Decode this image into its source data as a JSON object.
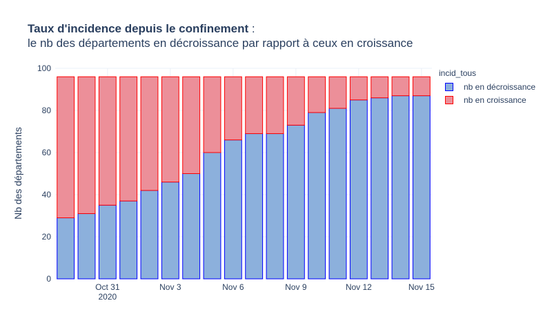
{
  "chart_data": {
    "type": "bar",
    "barmode": "stack",
    "title_bold": "Taux d'incidence depuis le confinement",
    "title_suffix": " :",
    "subtitle": "le nb des départements en décroissance par rapport à ceux en croissance",
    "xlabel": "",
    "ylabel": "Nb des départements",
    "ylim": [
      0,
      100
    ],
    "y_ticks": [
      0,
      20,
      40,
      60,
      80,
      100
    ],
    "grid": true,
    "legend_title": "incid_tous",
    "legend_position": "top-right",
    "x_ticks": [
      {
        "index": 2,
        "label": "Oct 31",
        "sublabel": "2020"
      },
      {
        "index": 5,
        "label": "Nov 3",
        "sublabel": ""
      },
      {
        "index": 8,
        "label": "Nov 6",
        "sublabel": ""
      },
      {
        "index": 11,
        "label": "Nov 9",
        "sublabel": ""
      },
      {
        "index": 14,
        "label": "Nov 12",
        "sublabel": ""
      },
      {
        "index": 17,
        "label": "Nov 15",
        "sublabel": ""
      }
    ],
    "categories": [
      "2020-10-29",
      "2020-10-30",
      "2020-10-31",
      "2020-11-01",
      "2020-11-02",
      "2020-11-03",
      "2020-11-04",
      "2020-11-05",
      "2020-11-06",
      "2020-11-07",
      "2020-11-08",
      "2020-11-09",
      "2020-11-10",
      "2020-11-11",
      "2020-11-12",
      "2020-11-13",
      "2020-11-14",
      "2020-11-15"
    ],
    "series": [
      {
        "name": "nb en décroissance",
        "fill": "#8cb0dc",
        "stroke": "#0000ff",
        "values": [
          29,
          31,
          35,
          37,
          42,
          46,
          50,
          60,
          66,
          69,
          69,
          73,
          79,
          81,
          85,
          86,
          87,
          87
        ]
      },
      {
        "name": "nb en croissance",
        "fill": "#ec8f99",
        "stroke": "#ff0000",
        "values": [
          67,
          65,
          61,
          59,
          54,
          50,
          46,
          36,
          30,
          27,
          27,
          23,
          17,
          15,
          11,
          10,
          9,
          9
        ]
      }
    ]
  }
}
